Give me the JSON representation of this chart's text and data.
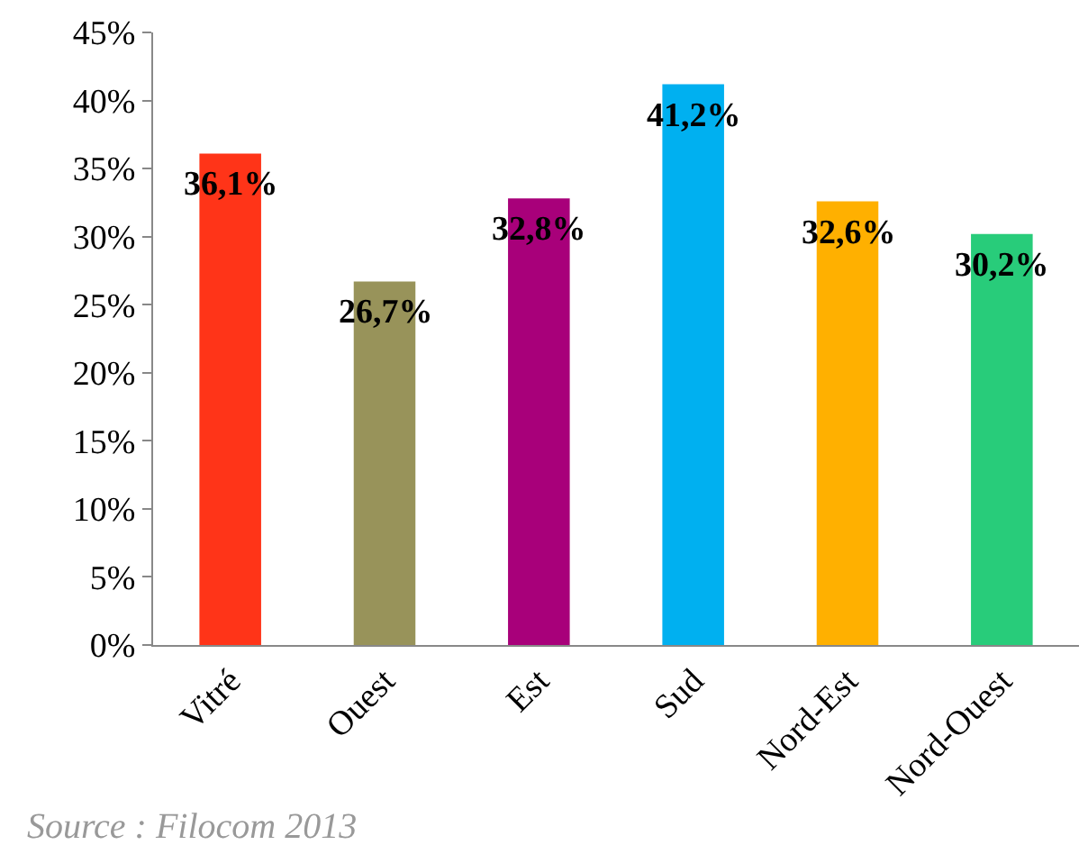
{
  "chart_data": {
    "type": "bar",
    "categories": [
      "Vitré",
      "Ouest",
      "Est",
      "Sud",
      "Nord-Est",
      "Nord-Ouest"
    ],
    "values": [
      36.1,
      26.7,
      32.8,
      41.2,
      32.6,
      30.2
    ],
    "colors": [
      "#ff3418",
      "#98935a",
      "#a8007a",
      "#00b0f0",
      "#ffb000",
      "#28cc7a"
    ],
    "value_labels": [
      "36,1%",
      "26,7%",
      "32,8%",
      "41,2%",
      "32,6%",
      "30,2%"
    ],
    "ylim": [
      0,
      45
    ],
    "yticks": [
      {
        "value": 0,
        "label": "0%"
      },
      {
        "value": 5,
        "label": "5%"
      },
      {
        "value": 10,
        "label": "10%"
      },
      {
        "value": 15,
        "label": "15%"
      },
      {
        "value": 20,
        "label": "20%"
      },
      {
        "value": 25,
        "label": "25%"
      },
      {
        "value": 30,
        "label": "30%"
      },
      {
        "value": 35,
        "label": "35%"
      },
      {
        "value": 40,
        "label": "40%"
      },
      {
        "value": 45,
        "label": "45%"
      }
    ],
    "grid": false,
    "annotations": [
      "Source : Filocom 2013"
    ]
  }
}
